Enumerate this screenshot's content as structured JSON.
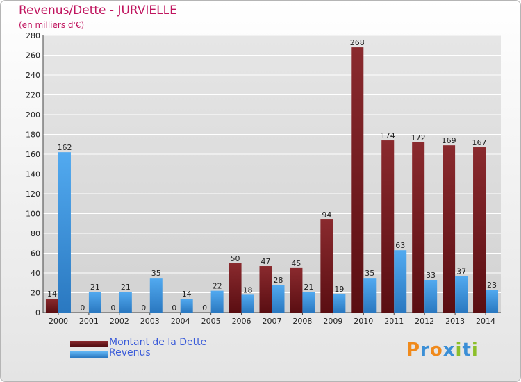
{
  "header": {
    "title": "Revenus/Dette - JURVIELLE",
    "subtitle": "(en milliers d'€)"
  },
  "legend": [
    {
      "label": "Montant de la Dette",
      "color": "#7a1a1f"
    },
    {
      "label": "Revenus",
      "color": "#3d93da"
    }
  ],
  "logo": {
    "text": "Proxiti",
    "colors": [
      "#f08a1c",
      "#3b8fd6",
      "#f08a1c",
      "#3b8fd6",
      "#8cbf2a",
      "#3b8fd6",
      "#8cbf2a"
    ]
  },
  "colors": {
    "dette_top": "#8a2a2e",
    "dette_bottom": "#5a0e12",
    "revenus_top": "#52aaf0",
    "revenus_bottom": "#2a78c0",
    "grid": "#ffffff",
    "axis_text": "#222222"
  },
  "chart_data": {
    "type": "bar",
    "title": "Revenus/Dette - JURVIELLE",
    "subtitle": "(en milliers d'€)",
    "categories": [
      "2000",
      "2001",
      "2002",
      "2003",
      "2004",
      "2005",
      "2006",
      "2007",
      "2008",
      "2009",
      "2010",
      "2011",
      "2012",
      "2013",
      "2014"
    ],
    "series": [
      {
        "name": "Montant de la Dette",
        "values": [
          14,
          0,
          0,
          0,
          0,
          0,
          50,
          47,
          45,
          94,
          268,
          174,
          172,
          169,
          167
        ]
      },
      {
        "name": "Revenus",
        "values": [
          162,
          21,
          21,
          35,
          14,
          22,
          18,
          28,
          21,
          19,
          35,
          63,
          33,
          37,
          23
        ]
      }
    ],
    "ylim": [
      0,
      280
    ],
    "yticks": [
      0,
      20,
      40,
      60,
      80,
      100,
      120,
      140,
      160,
      180,
      200,
      220,
      240,
      260,
      280
    ],
    "grid": true,
    "legend_position": "bottom-left"
  }
}
